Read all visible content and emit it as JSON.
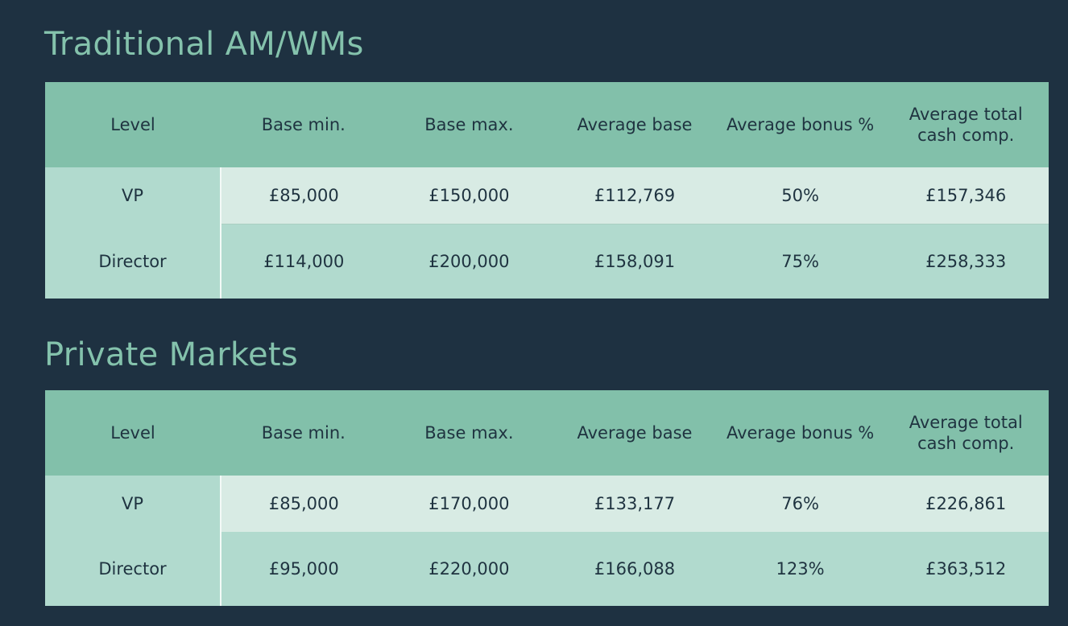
{
  "sections": [
    {
      "title": "Traditional AM/WMs",
      "headers": [
        "Level",
        "Base min.",
        "Base max.",
        "Average base",
        "Average bonus %",
        "Average total cash comp."
      ],
      "rows": [
        [
          "VP",
          "£85,000",
          "£150,000",
          "£112,769",
          "50%",
          "£157,346"
        ],
        [
          "Director",
          "£114,000",
          "£200,000",
          "£158,091",
          "75%",
          "£258,333"
        ]
      ]
    },
    {
      "title": "Private Markets",
      "headers": [
        "Level",
        "Base min.",
        "Base max.",
        "Average base",
        "Average bonus %",
        "Average total cash comp."
      ],
      "rows": [
        [
          "VP",
          "£85,000",
          "£170,000",
          "£133,177",
          "76%",
          "£226,861"
        ],
        [
          "Director",
          "£95,000",
          "£220,000",
          "£166,088",
          "123%",
          "£363,512"
        ]
      ]
    }
  ],
  "colors": {
    "background": "#1e3141",
    "title": "#84c2ac",
    "header": "#82c0aa",
    "row_light": "#d8ebe4",
    "row_mid": "#b1dace",
    "text": "#1f3340"
  }
}
